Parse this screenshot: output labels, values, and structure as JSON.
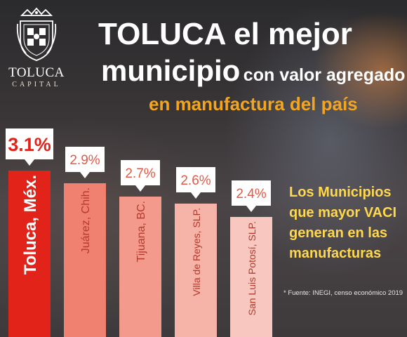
{
  "brand": {
    "name": "TOLUCA",
    "tagline": "CAPITAL"
  },
  "title": {
    "line1": "TOLUCA el mejor",
    "line2_big": "municipio",
    "line2_small": "con valor agregado",
    "subtitle": "en manufactura del país"
  },
  "side_text": [
    "Los Municipios",
    "que mayor VACI",
    "generan en las",
    "manufacturas"
  ],
  "source": "* Fuente: INEGI, censo económico 2019",
  "colors": {
    "highlight_bar": "#e2231a",
    "bars": [
      "#e2231a",
      "#f08070",
      "#f39a8c",
      "#f6b3a8",
      "#f8c8c0"
    ],
    "subtitle": "#f2a51f",
    "side_text": "#ffd84d"
  },
  "chart_data": {
    "type": "bar",
    "categories": [
      "Toluca, Méx.",
      "Juárez, Chih.",
      "Tijuana, BC.",
      "Villa de Reyes, SLP.",
      "San Luis Potosí, SLP."
    ],
    "values": [
      3.1,
      2.9,
      2.7,
      2.6,
      2.4
    ],
    "data_labels": [
      "3.1%",
      "2.9%",
      "2.7%",
      "2.6%",
      "2.4%"
    ],
    "unit": "%",
    "highlight_index": 0
  }
}
